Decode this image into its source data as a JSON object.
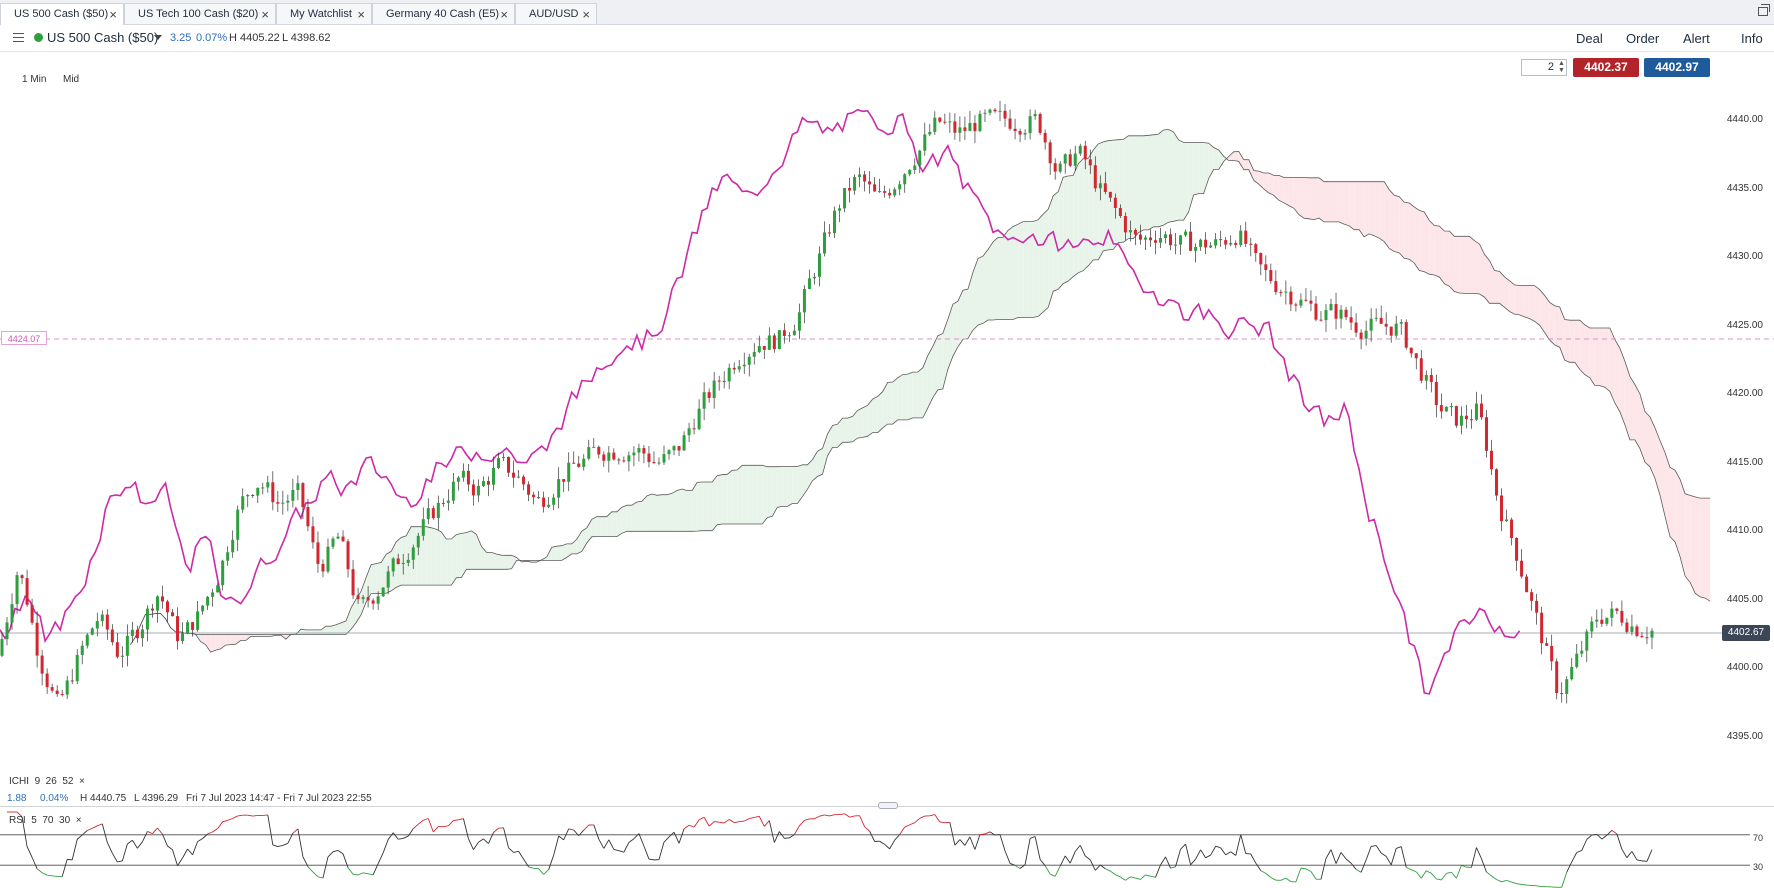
{
  "tabs": [
    {
      "label": "US 500 Cash ($50)",
      "active": true
    },
    {
      "label": "US Tech 100 Cash ($20)",
      "active": false
    },
    {
      "label": "My Watchlist",
      "active": false
    },
    {
      "label": "Germany 40 Cash (E5)",
      "active": false
    },
    {
      "label": "AUD/USD",
      "active": false
    }
  ],
  "tab_close_glyph": "×",
  "header": {
    "instrument": "US 500 Cash ($50)",
    "change": "3.25",
    "change_pct": "0.07%",
    "high": "H 4405.22",
    "low": "L 4398.62",
    "menu": [
      "Deal",
      "Order",
      "Alert",
      "Info"
    ]
  },
  "toolbar": {
    "timeframe": "1 Min",
    "price_type": "Mid",
    "quantity": "2",
    "sell_price": "4402.37",
    "buy_price": "4402.97"
  },
  "price_axis": {
    "labels": [
      "4440.00",
      "4435.00",
      "4430.00",
      "4425.00",
      "4420.00",
      "4415.00",
      "4410.00",
      "4405.00",
      "4400.00",
      "4395.00"
    ],
    "current_price": "4402.67",
    "alert_line": "4424.07"
  },
  "indicator": {
    "name": "ICHI",
    "params": "9  26  52",
    "change": "1.88",
    "change_pct": "0.04%",
    "high": "H 4440.75",
    "low": "L 4396.29",
    "range": "Fri 7 Jul 2023 14:47 - Fri 7 Jul 2023 22:55",
    "close_glyph": "×"
  },
  "rsi": {
    "name": "RSI",
    "params": "5  70  30",
    "upper": "70",
    "lower": "30",
    "close_glyph": "×"
  },
  "colors": {
    "up": "#2e9e3e",
    "down": "#d22630",
    "lagging_span": "#cc2aa8",
    "cloud_bull": "#e8f4ea",
    "cloud_bear": "#fde6ea",
    "sell": "#b3232a",
    "buy": "#1f5b9a"
  },
  "chart_data": {
    "type": "candlestick",
    "instrument": "US 500 Cash ($50)",
    "timeframe": "1 Min",
    "ylim": [
      4392,
      4442
    ],
    "y_ticks": [
      4395,
      4400,
      4405,
      4410,
      4415,
      4420,
      4425,
      4430,
      4435,
      4440
    ],
    "current_price": 4402.67,
    "alert_level": 4424.07,
    "close_path": [
      [
        0,
        4401
      ],
      [
        20,
        4408
      ],
      [
        40,
        4401
      ],
      [
        60,
        4397
      ],
      [
        80,
        4401
      ],
      [
        100,
        4404
      ],
      [
        120,
        4401
      ],
      [
        140,
        4403
      ],
      [
        160,
        4406
      ],
      [
        180,
        4402
      ],
      [
        200,
        4404
      ],
      [
        220,
        4407
      ],
      [
        240,
        4412
      ],
      [
        260,
        4414
      ],
      [
        280,
        4412
      ],
      [
        300,
        4413
      ],
      [
        320,
        4407
      ],
      [
        340,
        4410
      ],
      [
        360,
        4404
      ],
      [
        380,
        4406
      ],
      [
        400,
        4408
      ],
      [
        420,
        4410
      ],
      [
        440,
        4412
      ],
      [
        460,
        4414
      ],
      [
        480,
        4413
      ],
      [
        500,
        4415
      ],
      [
        520,
        4414
      ],
      [
        540,
        4412
      ],
      [
        560,
        4414
      ],
      [
        580,
        4415
      ],
      [
        600,
        4416
      ],
      [
        620,
        4416
      ],
      [
        640,
        4416
      ],
      [
        660,
        4415
      ],
      [
        680,
        4416
      ],
      [
        700,
        4419
      ],
      [
        720,
        4421
      ],
      [
        740,
        4423
      ],
      [
        760,
        4424
      ],
      [
        780,
        4424
      ],
      [
        800,
        4426
      ],
      [
        820,
        4430
      ],
      [
        840,
        4434
      ],
      [
        860,
        4436
      ],
      [
        880,
        4434
      ],
      [
        900,
        4436
      ],
      [
        920,
        4438
      ],
      [
        940,
        4440
      ],
      [
        960,
        4439
      ],
      [
        980,
        4440
      ],
      [
        1000,
        4440
      ],
      [
        1020,
        4440
      ],
      [
        1040,
        4440
      ],
      [
        1060,
        4436
      ],
      [
        1080,
        4438
      ],
      [
        1100,
        4435
      ],
      [
        1120,
        4433
      ],
      [
        1140,
        4431
      ],
      [
        1160,
        4432
      ],
      [
        1180,
        4431
      ],
      [
        1200,
        4431
      ],
      [
        1220,
        4431
      ],
      [
        1240,
        4432
      ],
      [
        1260,
        4429
      ],
      [
        1280,
        4428
      ],
      [
        1300,
        4427
      ],
      [
        1320,
        4426
      ],
      [
        1340,
        4426
      ],
      [
        1360,
        4425
      ],
      [
        1380,
        4425
      ],
      [
        1400,
        4425
      ],
      [
        1420,
        4422
      ],
      [
        1440,
        4419
      ],
      [
        1460,
        4418
      ],
      [
        1480,
        4419
      ],
      [
        1500,
        4412
      ],
      [
        1520,
        4408
      ],
      [
        1540,
        4403
      ],
      [
        1560,
        4398
      ],
      [
        1580,
        4401
      ],
      [
        1600,
        4404
      ],
      [
        1620,
        4404
      ],
      [
        1640,
        4403
      ],
      [
        1655,
        4403
      ]
    ],
    "rsi": {
      "period": 5,
      "upper": 70,
      "lower": 30
    }
  }
}
